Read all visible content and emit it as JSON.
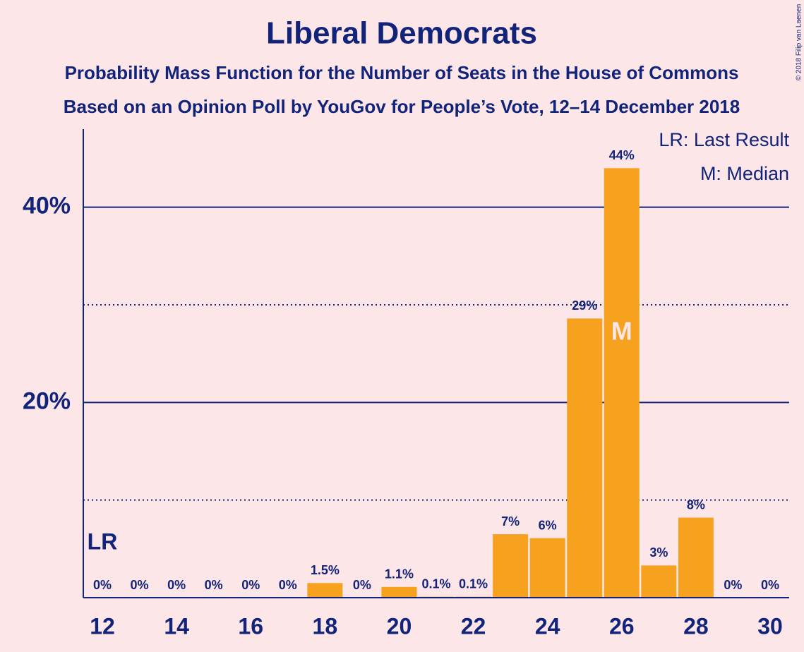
{
  "chart_data": {
    "type": "bar",
    "title": "Liberal Democrats",
    "subtitle": "Probability Mass Function for the Number of Seats in the House of Commons",
    "subtitle2": "Based on an Opinion Poll by YouGov for People’s Vote, 12–14 December 2018",
    "x": [
      12,
      13,
      14,
      15,
      16,
      17,
      18,
      19,
      20,
      21,
      22,
      23,
      24,
      25,
      26,
      27,
      28,
      29,
      30
    ],
    "values": [
      0,
      0,
      0,
      0,
      0,
      0,
      1.5,
      0,
      1.1,
      0.1,
      0.1,
      6.5,
      6.1,
      28.6,
      44.0,
      3.3,
      8.2,
      0,
      0
    ],
    "value_labels": [
      "0%",
      "0%",
      "0%",
      "0%",
      "0%",
      "0%",
      "1.5%",
      "0%",
      "1.1%",
      "0.1%",
      "0.1%",
      "7%",
      "6%",
      "29%",
      "44%",
      "3%",
      "8%",
      "0%",
      "0%"
    ],
    "color": "#f7a21f",
    "xlim": [
      11.5,
      30.5
    ],
    "xticks": [
      12,
      14,
      16,
      18,
      20,
      22,
      24,
      26,
      28,
      30
    ],
    "ylim": [
      0,
      48
    ],
    "yticks": [
      {
        "value": 20,
        "label": "20%"
      },
      {
        "value": 40,
        "label": "40%"
      }
    ],
    "minor_yticks": [
      10,
      30
    ],
    "annotations": [
      {
        "text": "LR",
        "x": 12
      },
      {
        "text": "M",
        "x": 26
      }
    ],
    "legend": [
      "LR: Last Result",
      "M: Median"
    ],
    "credit": "© 2018 Filip van Laenen"
  }
}
